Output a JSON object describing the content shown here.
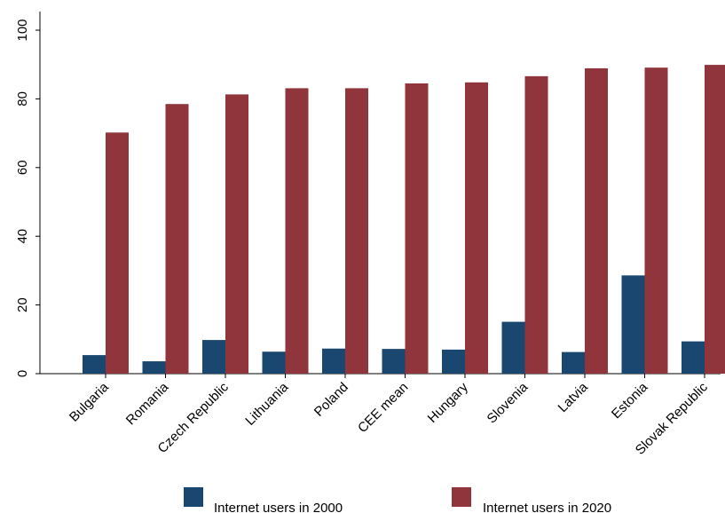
{
  "chart_data": {
    "type": "bar",
    "title": "",
    "xlabel": "",
    "ylabel": "",
    "categories": [
      "Bulgaria",
      "Romania",
      "Czech Republic",
      "Lithuania",
      "Poland",
      "CEE mean",
      "Hungary",
      "Slovenia",
      "Latvia",
      "Estonia",
      "Slovak Republic"
    ],
    "series": [
      {
        "name": "Internet users in 2000",
        "color": "#1a476f",
        "values": [
          5.4,
          3.6,
          9.8,
          6.4,
          7.3,
          7.2,
          7.0,
          15.1,
          6.3,
          28.6,
          9.4
        ]
      },
      {
        "name": "Internet users in 2020",
        "color": "#90353b",
        "values": [
          70.2,
          78.5,
          81.3,
          83.1,
          83.1,
          84.5,
          84.8,
          86.6,
          88.9,
          89.1,
          89.9
        ]
      }
    ],
    "ylim": [
      0,
      100
    ],
    "yticks": [
      0,
      20,
      40,
      60,
      80,
      100
    ],
    "grid": false,
    "legend_position": "bottom"
  }
}
